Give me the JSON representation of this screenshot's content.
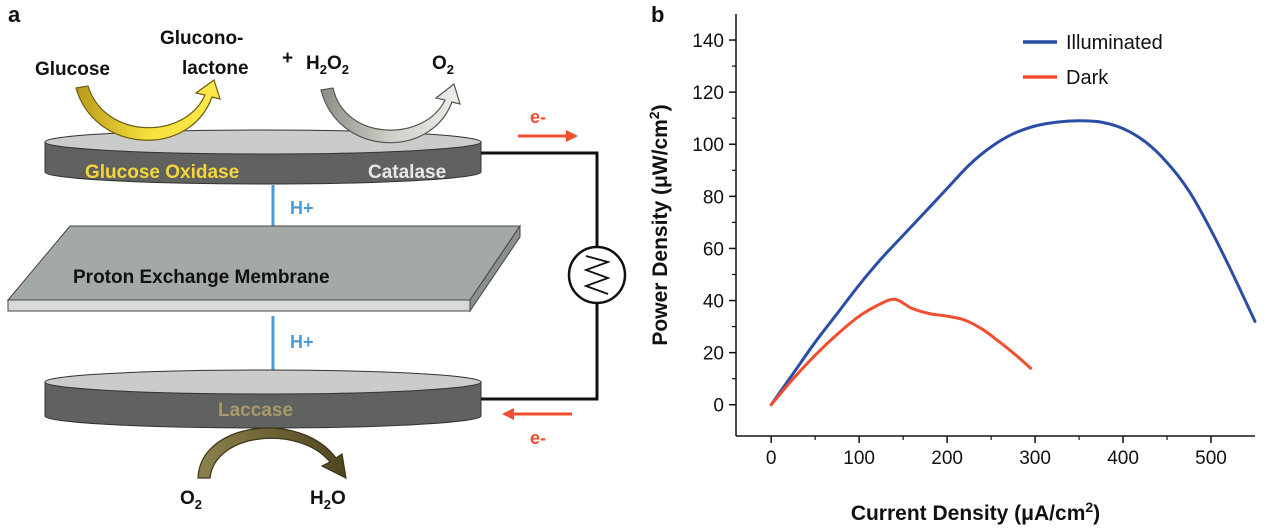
{
  "panel_a": {
    "label": "a",
    "glucose": "Glucose",
    "gluconolactone_line1": "Glucono-",
    "gluconolactone_line2": "lactone",
    "plus": "+",
    "h2o2_h": "H",
    "h2o2_sub1": "2",
    "h2o2_o": "O",
    "h2o2_sub2": "2",
    "o2_top_o": "O",
    "o2_top_sub": "2",
    "glucose_oxidase": "Glucose Oxidase",
    "catalase": "Catalase",
    "proton_top": "H+",
    "membrane": "Proton Exchange Membrane",
    "proton_bottom": "H+",
    "laccase": "Laccase",
    "electron_top": "e-",
    "electron_bottom": "e-",
    "o2_bottom_o": "O",
    "o2_bottom_sub": "2",
    "h2o_h": "H",
    "h2o_sub": "2",
    "h2o_o": "O",
    "colors": {
      "electrode": "#5f625f",
      "membrane": "#a3aaa5",
      "glucose_oxidase_text": "#f6d43c",
      "catalase_text": "#e8e8e8",
      "laccase_text": "#a89a6a",
      "proton": "#4b9bd8",
      "electron": "#f04e2f"
    }
  },
  "panel_b": {
    "label": "b"
  },
  "chart_data": {
    "type": "line",
    "xlabel_main": "Current Density (μA/cm",
    "xlabel_sup": "2",
    "xlabel_end": ")",
    "ylabel_main": "Power Density (μW/cm",
    "ylabel_sup": "2",
    "ylabel_end": ")",
    "xlim": [
      -40,
      550
    ],
    "ylim": [
      -12,
      150
    ],
    "xticks": [
      0,
      100,
      200,
      300,
      400,
      500
    ],
    "yticks": [
      0,
      20,
      40,
      60,
      80,
      100,
      120,
      140
    ],
    "legend_position": "top-right",
    "series": [
      {
        "name": "Illuminated",
        "color": "#2a4ea6",
        "x": [
          0,
          25,
          50,
          75,
          100,
          125,
          150,
          175,
          200,
          225,
          250,
          275,
          300,
          325,
          350,
          375,
          400,
          425,
          450,
          475,
          500,
          525,
          550
        ],
        "y": [
          0,
          12,
          24,
          35,
          46,
          56,
          65,
          74,
          83,
          92,
          99,
          104,
          107,
          108.5,
          109,
          108.5,
          106,
          101,
          93,
          82,
          67,
          50,
          32
        ]
      },
      {
        "name": "Dark",
        "color": "#f04e2f",
        "x": [
          0,
          25,
          50,
          75,
          100,
          120,
          135,
          145,
          160,
          180,
          200,
          220,
          240,
          260,
          280,
          295
        ],
        "y": [
          0,
          10,
          19,
          27,
          34,
          38,
          40.3,
          40,
          37,
          35,
          34,
          32.5,
          29,
          24,
          18.5,
          14
        ]
      }
    ]
  }
}
